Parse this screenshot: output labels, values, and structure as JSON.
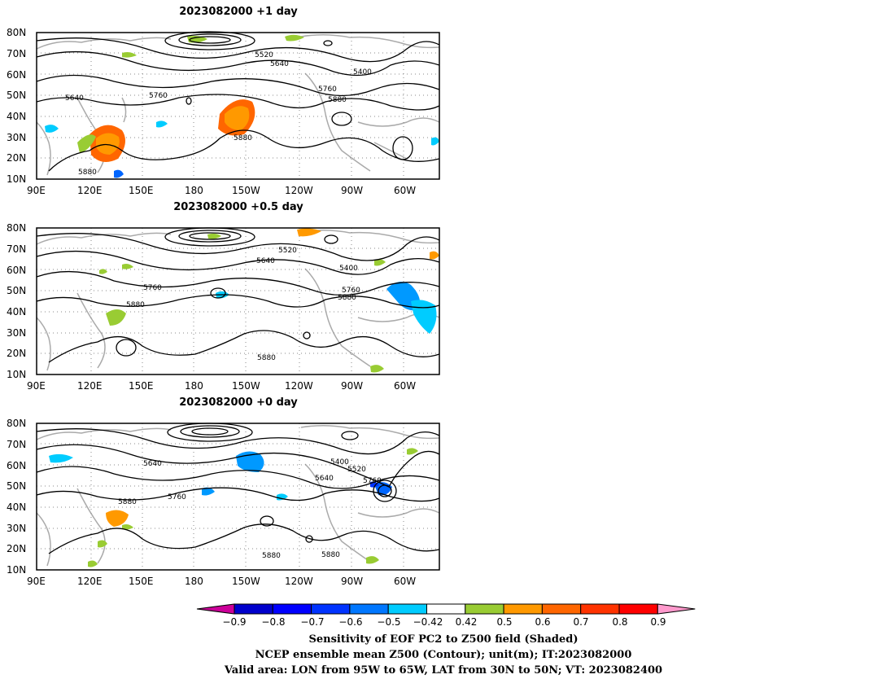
{
  "panels": [
    {
      "title": "2023082000  +1  day",
      "contour_labels": [
        "5520",
        "5640",
        "5400",
        "5640",
        "5760",
        "5760",
        "5880",
        "5880",
        "5880"
      ],
      "shading": [
        {
          "color": "#ff6600"
        },
        {
          "color": "#ff9900"
        },
        {
          "color": "#99cc33"
        },
        {
          "color": "#ff6600"
        },
        {
          "color": "#ff9900"
        },
        {
          "color": "#99cc33"
        },
        {
          "color": "#99cc33"
        },
        {
          "color": "#99cc33"
        },
        {
          "color": "#00ccff"
        },
        {
          "color": "#00ccff"
        },
        {
          "color": "#0066ff"
        },
        {
          "color": "#00ccff"
        }
      ]
    },
    {
      "title": "2023082000  +0.5  day",
      "contour_labels": [
        "5520",
        "5640",
        "5400",
        "5760",
        "5760",
        "5880",
        "5880",
        "5880"
      ],
      "shading": [
        {
          "color": "#0099ff"
        },
        {
          "color": "#00ccff"
        },
        {
          "color": "#99cc33"
        },
        {
          "color": "#ff9900"
        },
        {
          "color": "#99cc33"
        },
        {
          "color": "#99cc33"
        },
        {
          "color": "#99cc33"
        },
        {
          "color": "#99cc33"
        },
        {
          "color": "#ff9900"
        },
        {
          "color": "#99cc33"
        },
        {
          "color": "#00ccff"
        }
      ]
    },
    {
      "title": "2023082000  +0  day",
      "contour_labels": [
        "5640",
        "5400",
        "5520",
        "5640",
        "5760",
        "5760",
        "5880",
        "5880",
        "5880"
      ],
      "shading": [
        {
          "color": "#0099ff"
        },
        {
          "color": "#00ccff"
        },
        {
          "color": "#0066ff"
        },
        {
          "color": "#ff9900"
        },
        {
          "color": "#99cc33"
        },
        {
          "color": "#99cc33"
        },
        {
          "color": "#0099ff"
        },
        {
          "color": "#00ccff"
        },
        {
          "color": "#99cc33"
        },
        {
          "color": "#99cc33"
        },
        {
          "color": "#99cc33"
        },
        {
          "color": "#0033ff"
        }
      ]
    }
  ],
  "axes": {
    "lat_labels": [
      "80N",
      "70N",
      "60N",
      "50N",
      "40N",
      "30N",
      "20N",
      "10N"
    ],
    "lon_labels": [
      "90E",
      "120E",
      "150E",
      "180",
      "150W",
      "120W",
      "90W",
      "60W"
    ]
  },
  "colorbar": {
    "ticks": [
      "−0.9",
      "−0.8",
      "−0.7",
      "−0.6",
      "−0.5",
      "−0.42",
      "0.42",
      "0.5",
      "0.6",
      "0.7",
      "0.8",
      "0.9"
    ],
    "colors": [
      "#cc0099",
      "#0000cc",
      "#0000ff",
      "#0033ff",
      "#0077ff",
      "#00ccff",
      "#ffffff",
      "#99cc33",
      "#ff9900",
      "#ff6600",
      "#ff3300",
      "#ff0000",
      "#ff99cc"
    ]
  },
  "captions": [
    "Sensitivity of EOF PC2 to Z500 field (Shaded)",
    "NCEP ensemble mean Z500 (Contour); unit(m); IT:2023082000",
    "Valid area: LON from 95W to 65W, LAT from 30N to 50N; VT: 2023082400"
  ]
}
